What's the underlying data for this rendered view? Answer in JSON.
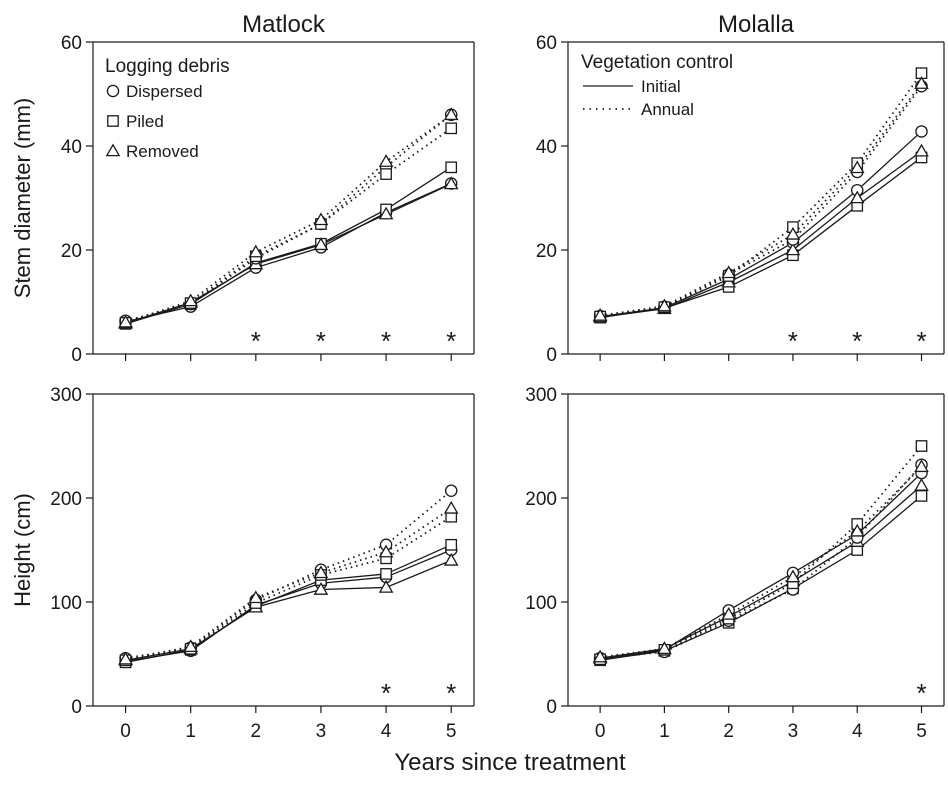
{
  "xlabel": "Years since treatment",
  "legend": {
    "debris_title": "Logging debris",
    "debris_items": [
      {
        "label": "Dispersed",
        "marker": "circle"
      },
      {
        "label": "Piled",
        "marker": "square"
      },
      {
        "label": "Removed",
        "marker": "triangle"
      }
    ],
    "veg_title": "Vegetation control",
    "veg_items": [
      {
        "label": "Initial",
        "style": "solid"
      },
      {
        "label": "Annual",
        "style": "dotted"
      }
    ]
  },
  "chart_data": [
    {
      "type": "line",
      "title": "Matlock",
      "ylabel": "Stem diameter (mm)",
      "x": [
        0,
        1,
        2,
        3,
        4,
        5
      ],
      "xlim": [
        -0.5,
        5.35
      ],
      "ylim": [
        0,
        60
      ],
      "yticks": [
        0,
        20,
        40,
        60
      ],
      "significant_years": [
        2,
        3,
        4,
        5
      ],
      "series": [
        {
          "debris": "Dispersed",
          "control": "Initial",
          "values": [
            6.2,
            9.1,
            16.6,
            20.5,
            27.2,
            32.8
          ]
        },
        {
          "debris": "Piled",
          "control": "Initial",
          "values": [
            5.8,
            9.6,
            17.5,
            21.2,
            27.8,
            35.9
          ]
        },
        {
          "debris": "Removed",
          "control": "Initial",
          "values": [
            5.9,
            9.9,
            17.3,
            21.0,
            26.9,
            32.7
          ]
        },
        {
          "debris": "Dispersed",
          "control": "Annual",
          "values": [
            6.4,
            9.6,
            18.4,
            25.0,
            36.0,
            46.0
          ]
        },
        {
          "debris": "Piled",
          "control": "Annual",
          "values": [
            6.0,
            9.8,
            18.8,
            25.0,
            34.6,
            43.4
          ]
        },
        {
          "debris": "Removed",
          "control": "Annual",
          "values": [
            6.1,
            10.2,
            19.6,
            25.8,
            37.0,
            46.0
          ]
        }
      ]
    },
    {
      "type": "line",
      "title": "Molalla",
      "ylabel": "",
      "x": [
        0,
        1,
        2,
        3,
        4,
        5
      ],
      "xlim": [
        -0.5,
        5.35
      ],
      "ylim": [
        0,
        60
      ],
      "yticks": [
        0,
        20,
        40,
        60
      ],
      "significant_years": [
        3,
        4,
        5
      ],
      "series": [
        {
          "debris": "Dispersed",
          "control": "Initial",
          "values": [
            7.2,
            8.9,
            14.4,
            21.4,
            31.5,
            42.8
          ]
        },
        {
          "debris": "Piled",
          "control": "Initial",
          "values": [
            7.0,
            8.8,
            12.9,
            19.0,
            28.5,
            37.8
          ]
        },
        {
          "debris": "Removed",
          "control": "Initial",
          "values": [
            7.1,
            8.7,
            13.8,
            20.0,
            30.0,
            39.0
          ]
        },
        {
          "debris": "Dispersed",
          "control": "Annual",
          "values": [
            7.3,
            9.1,
            15.3,
            22.0,
            35.0,
            51.5
          ]
        },
        {
          "debris": "Piled",
          "control": "Annual",
          "values": [
            7.2,
            9.0,
            15.0,
            24.4,
            36.7,
            54.0
          ]
        },
        {
          "debris": "Removed",
          "control": "Annual",
          "values": [
            7.4,
            9.2,
            15.6,
            23.0,
            35.8,
            52.0
          ]
        }
      ]
    },
    {
      "type": "line",
      "title": "",
      "ylabel": "Height (cm)",
      "x": [
        0,
        1,
        2,
        3,
        4,
        5
      ],
      "xlim": [
        -0.5,
        5.35
      ],
      "ylim": [
        0,
        300
      ],
      "yticks": [
        0,
        100,
        200,
        300
      ],
      "significant_years": [
        4,
        5
      ],
      "series": [
        {
          "debris": "Dispersed",
          "control": "Initial",
          "values": [
            43,
            53,
            97,
            118,
            124,
            150
          ]
        },
        {
          "debris": "Piled",
          "control": "Initial",
          "values": [
            42,
            54,
            96,
            121,
            127,
            155
          ]
        },
        {
          "debris": "Removed",
          "control": "Initial",
          "values": [
            44,
            55,
            95,
            112,
            114,
            140
          ]
        },
        {
          "debris": "Dispersed",
          "control": "Annual",
          "values": [
            46,
            56,
            102,
            131,
            155,
            207
          ]
        },
        {
          "debris": "Piled",
          "control": "Annual",
          "values": [
            44,
            55,
            99,
            126,
            142,
            182
          ]
        },
        {
          "debris": "Removed",
          "control": "Annual",
          "values": [
            45,
            57,
            104,
            128,
            148,
            190
          ]
        }
      ]
    },
    {
      "type": "line",
      "title": "",
      "ylabel": "",
      "x": [
        0,
        1,
        2,
        3,
        4,
        5
      ],
      "xlim": [
        -0.5,
        5.35
      ],
      "ylim": [
        0,
        300
      ],
      "yticks": [
        0,
        100,
        200,
        300
      ],
      "significant_years": [
        5
      ],
      "series": [
        {
          "debris": "Dispersed",
          "control": "Initial",
          "values": [
            45,
            54,
            92,
            128,
            165,
            224
          ]
        },
        {
          "debris": "Piled",
          "control": "Initial",
          "values": [
            44,
            53,
            80,
            113,
            150,
            202
          ]
        },
        {
          "debris": "Removed",
          "control": "Initial",
          "values": [
            46,
            55,
            86,
            120,
            158,
            212
          ]
        },
        {
          "debris": "Dispersed",
          "control": "Annual",
          "values": [
            46,
            52,
            82,
            112,
            162,
            232
          ]
        },
        {
          "debris": "Piled",
          "control": "Annual",
          "values": [
            45,
            54,
            84,
            118,
            175,
            250
          ]
        },
        {
          "debris": "Removed",
          "control": "Annual",
          "values": [
            47,
            55,
            88,
            124,
            168,
            230
          ]
        }
      ]
    }
  ]
}
